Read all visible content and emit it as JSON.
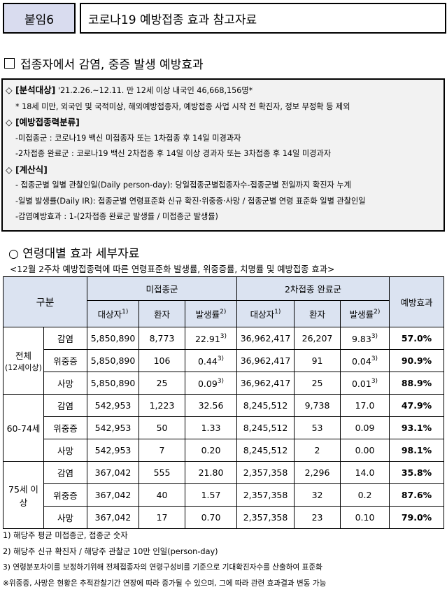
{
  "header": {
    "tag": "붙임6",
    "title": "코로나19 예방접종 효과 참고자료"
  },
  "section1": {
    "title": "접종자에서 감염, 중증 발생 예방효과"
  },
  "analysis": {
    "target_header": "◇ [분석대상]",
    "target_text": "'21.2.26.~12.11. 만 12세 이상 내국인 46,668,156명*",
    "target_note": "* 18세 미만, 외국인 및 국적미상, 해외예방접종자, 예방접종 사업 시작 전 확진자, 정보 부정확 등 제외",
    "class_header": "◇ [예방접종력분류]",
    "class_line1": "-미접종군 : 코로나19 백신 미접종자 또는 1차접종 후 14일 미경과자",
    "class_line2": "-2차접종 완료군 : 코로나19 백신 2차접종 후 14일 이상 경과자 또는 3차접종 후 14일 미경과자",
    "calc_header": "◇ [계산식]",
    "calc_line1": "- 접종군별 일별 관찰인일(Daily person-day): 당일접종군별접종자수-접종군별 전일까지 확진자 누계",
    "calc_line2": "-일별 발생률(Daily IR): 접종군별 연령표준화 신규 확진·위중증·사망 / 접종군별 연령 표준화 일별 관찰인일",
    "calc_line3": "-감염예방효과 : 1-(2차접종 완료군 발생률 / 미접종군 발생률)"
  },
  "section2": {
    "title": "○ 연령대별 효과 세부자료",
    "subtitle": "<12월 2주차 예방접종력에 따른 연령표준화 발생률, 위중증률, 치명률 및 예방접종 효과>"
  },
  "table": {
    "h_group": "구분",
    "h_unvax": "미접종군",
    "h_vax2": "2차접종 완료군",
    "h_effect": "예방효과",
    "h_target": "대상자",
    "h_patient": "환자",
    "h_rate": "발생률",
    "sup1": "1)",
    "sup2": "2)",
    "sup3": "3)",
    "groups": [
      {
        "name1": "전체",
        "name2": "(12세이상)",
        "rows": [
          {
            "cat": "감염",
            "u_t": "5,850,890",
            "u_p": "8,773",
            "u_r": "22.91",
            "v_t": "36,962,417",
            "v_p": "26,207",
            "v_r": "9.83",
            "eff": "57.0%"
          },
          {
            "cat": "위중증",
            "u_t": "5,850,890",
            "u_p": "106",
            "u_r": "0.44",
            "v_t": "36,962,417",
            "v_p": "91",
            "v_r": "0.04",
            "eff": "90.9%"
          },
          {
            "cat": "사망",
            "u_t": "5,850,890",
            "u_p": "25",
            "u_r": "0.09",
            "v_t": "36,962,417",
            "v_p": "25",
            "v_r": "0.01",
            "eff": "88.9%"
          }
        ]
      },
      {
        "name1": "60-74세",
        "name2": "",
        "rows": [
          {
            "cat": "감염",
            "u_t": "542,953",
            "u_p": "1,223",
            "u_r": "32.56",
            "v_t": "8,245,512",
            "v_p": "9,738",
            "v_r": "17.0",
            "eff": "47.9%"
          },
          {
            "cat": "위중증",
            "u_t": "542,953",
            "u_p": "50",
            "u_r": "1.33",
            "v_t": "8,245,512",
            "v_p": "53",
            "v_r": "0.09",
            "eff": "93.1%"
          },
          {
            "cat": "사망",
            "u_t": "542,953",
            "u_p": "7",
            "u_r": "0.20",
            "v_t": "8,245,512",
            "v_p": "2",
            "v_r": "0.00",
            "eff": "98.1%"
          }
        ]
      },
      {
        "name1": "75세 이",
        "name2": "상",
        "rows": [
          {
            "cat": "감염",
            "u_t": "367,042",
            "u_p": "555",
            "u_r": "21.80",
            "v_t": "2,357,358",
            "v_p": "2,296",
            "v_r": "14.0",
            "eff": "35.8%"
          },
          {
            "cat": "위중증",
            "u_t": "367,042",
            "u_p": "40",
            "u_r": "1.57",
            "v_t": "2,357,358",
            "v_p": "32",
            "v_r": "0.2",
            "eff": "87.6%"
          },
          {
            "cat": "사망",
            "u_t": "367,042",
            "u_p": "17",
            "u_r": "0.70",
            "v_t": "2,357,358",
            "v_p": "23",
            "v_r": "0.10",
            "eff": "79.0%"
          }
        ]
      }
    ]
  },
  "notes": [
    "1) 해당주 평균 미접종군, 접종군 숫자",
    "2) 해당주 신규 확진자 / 해당주 관찰군 10만 인일(person-day)",
    "3) 연령분포차이를 보정하기위해 전체접종자의 연령구성비를 기준으로 기대확진자수를 산출하여 표준화",
    "※위중증, 사망은 현황은 추적관찰기간 연장에 따라 증가될 수 있으며, 그에 따라 관련 효과결과 변동 가능"
  ]
}
